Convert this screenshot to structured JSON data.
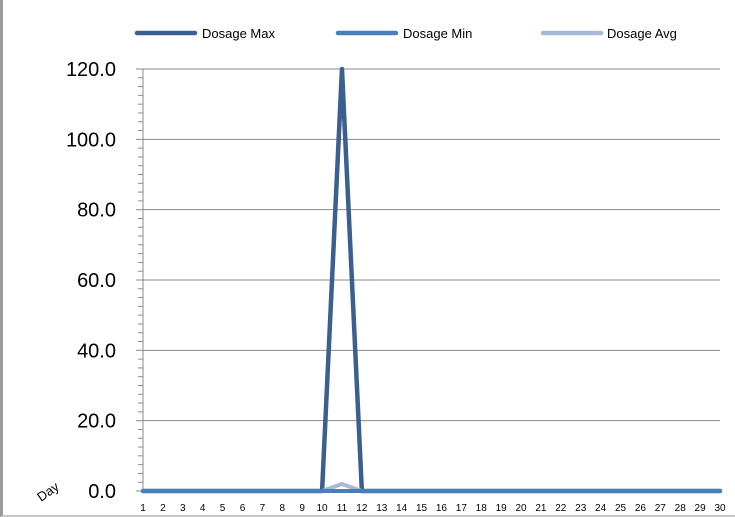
{
  "chart_data": {
    "type": "line",
    "title": "",
    "xlabel": "Day",
    "ylabel": "",
    "x": [
      1,
      2,
      3,
      4,
      5,
      6,
      7,
      8,
      9,
      10,
      11,
      12,
      13,
      14,
      15,
      16,
      17,
      18,
      19,
      20,
      21,
      22,
      23,
      24,
      25,
      26,
      27,
      28,
      29,
      30
    ],
    "ylim": [
      0,
      120
    ],
    "yticks": [
      "0.0",
      "20.0",
      "40.0",
      "60.0",
      "80.0",
      "100.0",
      "120.0"
    ],
    "grid": true,
    "legend_position": "top",
    "series": [
      {
        "name": "Dosage Max",
        "color": "#3B5F8F",
        "values": [
          0,
          0,
          0,
          0,
          0,
          0,
          0,
          0,
          0,
          0,
          120,
          0,
          0,
          0,
          0,
          0,
          0,
          0,
          0,
          0,
          0,
          0,
          0,
          0,
          0,
          0,
          0,
          0,
          0,
          0
        ]
      },
      {
        "name": "Dosage Min",
        "color": "#4A7EBB",
        "values": [
          0,
          0,
          0,
          0,
          0,
          0,
          0,
          0,
          0,
          0,
          0,
          0,
          0,
          0,
          0,
          0,
          0,
          0,
          0,
          0,
          0,
          0,
          0,
          0,
          0,
          0,
          0,
          0,
          0,
          0
        ]
      },
      {
        "name": "Dosage Avg",
        "color": "#A7B9D8",
        "values": [
          0,
          0,
          0,
          0,
          0,
          0,
          0,
          0,
          0,
          0,
          2,
          0,
          0,
          0,
          0,
          0,
          0,
          0,
          0,
          0,
          0,
          0,
          0,
          0,
          0,
          0,
          0,
          0,
          0,
          0
        ]
      }
    ]
  }
}
